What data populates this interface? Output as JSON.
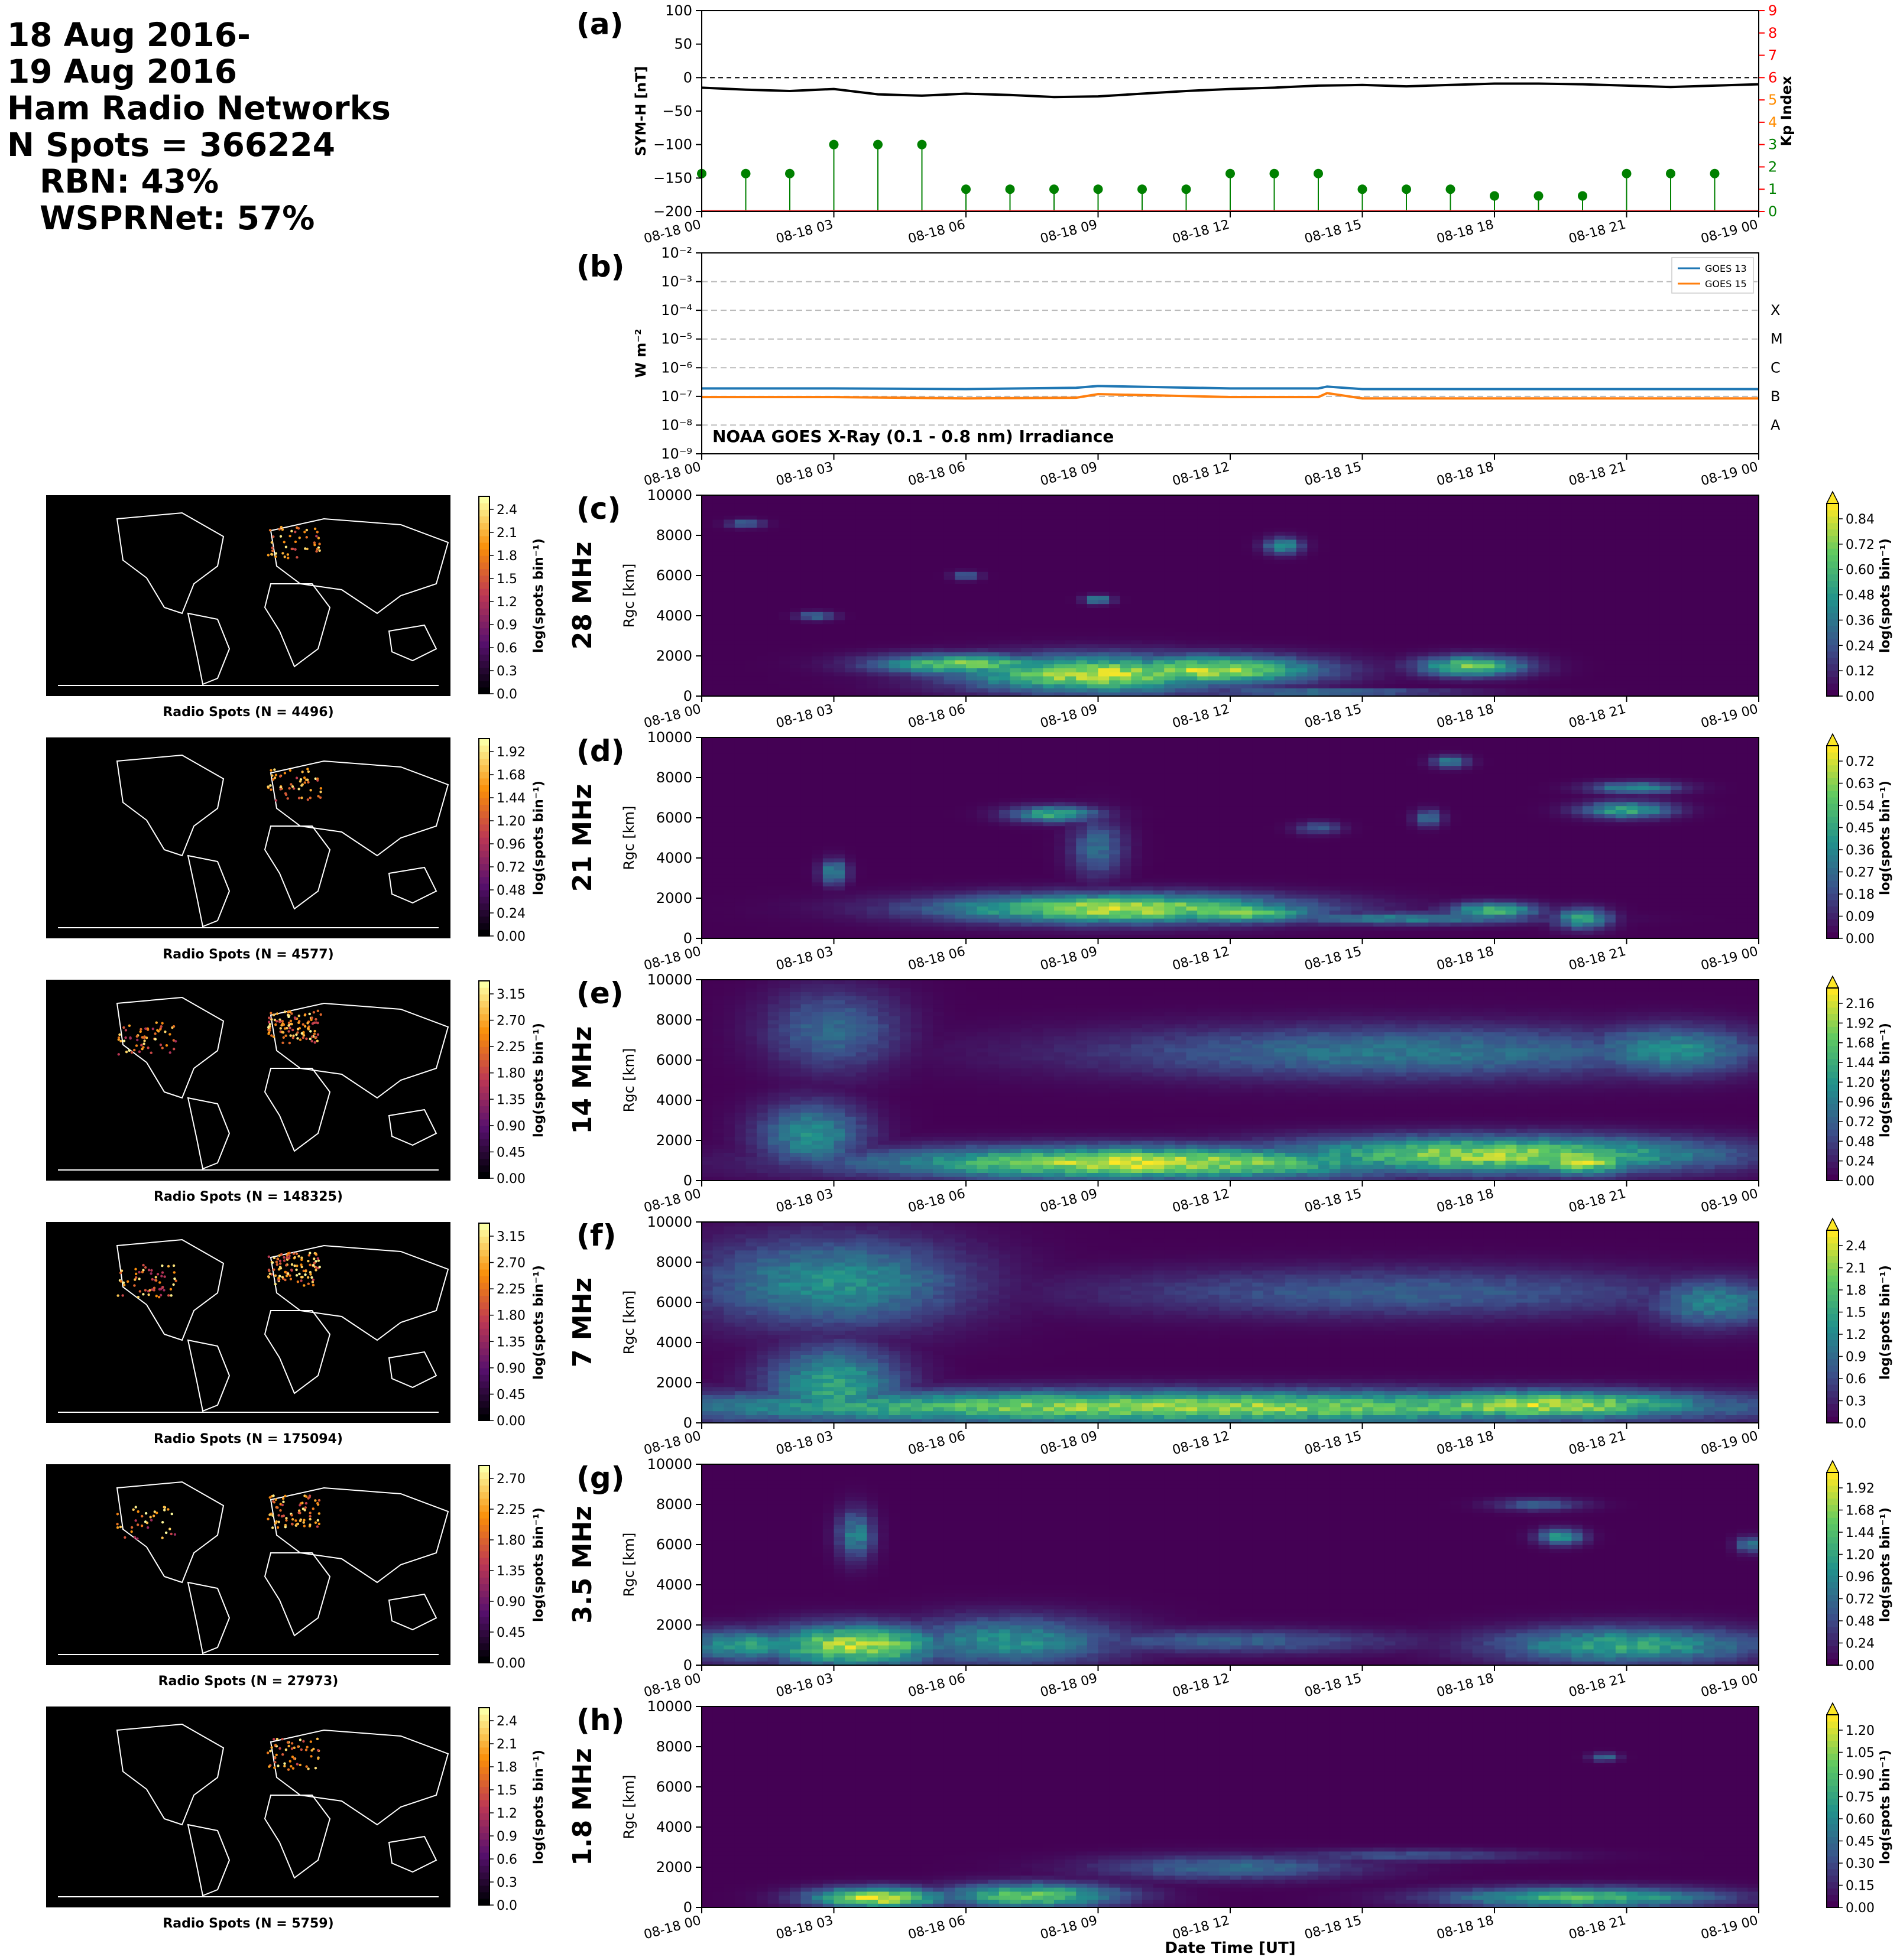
{
  "header": {
    "date_line1": "18 Aug 2016-",
    "date_line2": "19 Aug 2016",
    "network": "Ham Radio Networks",
    "n_spots": "N Spots = 366224",
    "rbn": "RBN: 43%",
    "wspr": "WSPRNet: 57%"
  },
  "time_ticks": [
    "08-18 00",
    "08-18 03",
    "08-18 06",
    "08-18 09",
    "08-18 12",
    "08-18 15",
    "08-18 18",
    "08-18 21",
    "08-19 00"
  ],
  "xlabel_bottom": "Date Time [UT]",
  "colors": {
    "symh_line": "#000000",
    "kp_stem": "#008000",
    "goes13": "#1f77b4",
    "goes15": "#ff7f0e",
    "kp_axis": "#ff0000",
    "map_bg": "#000000",
    "coast": "#ffffff"
  },
  "panel_a": {
    "label": "(a)",
    "ylabel_left": "SYM-H [nT]",
    "ylabel_right": "Kp Index",
    "yticks_left": [
      "100",
      "50",
      "0",
      "−50",
      "−100",
      "−150",
      "−200"
    ],
    "yticks_right": [
      "9",
      "8",
      "7",
      "6",
      "5",
      "4",
      "3",
      "2",
      "1",
      "0"
    ]
  },
  "panel_b": {
    "label": "(b)",
    "ylabel": "W m⁻²",
    "caption": "NOAA GOES X-Ray (0.1 - 0.8 nm) Irradiance",
    "classes": [
      "X",
      "M",
      "C",
      "B",
      "A"
    ],
    "yticks": [
      "10⁻²",
      "10⁻³",
      "10⁻⁴",
      "10⁻⁵",
      "10⁻⁶",
      "10⁻⁷",
      "10⁻⁸",
      "10⁻⁹"
    ],
    "legend": [
      "GOES 13",
      "GOES 15"
    ]
  },
  "band_ylabel": "Rgc [km]",
  "band_yticks": [
    "10000",
    "8000",
    "6000",
    "4000",
    "2000",
    "0"
  ],
  "cbar_label": "log(spots bin⁻¹)",
  "bands": [
    {
      "label": "(c)",
      "freq": "28 MHz",
      "map_caption": "Radio Spots (N = 4496)",
      "map_ticks": [
        "2.4",
        "2.1",
        "1.8",
        "1.5",
        "1.2",
        "0.9",
        "0.6",
        "0.3",
        "0.0"
      ],
      "ticks": [
        "0.84",
        "0.72",
        "0.60",
        "0.48",
        "0.36",
        "0.24",
        "0.12",
        "0.00"
      ]
    },
    {
      "label": "(d)",
      "freq": "21 MHz",
      "map_caption": "Radio Spots (N = 4577)",
      "map_ticks": [
        "1.92",
        "1.68",
        "1.44",
        "1.20",
        "0.96",
        "0.72",
        "0.48",
        "0.24",
        "0.00"
      ],
      "ticks": [
        "0.72",
        "0.63",
        "0.54",
        "0.45",
        "0.36",
        "0.27",
        "0.18",
        "0.09",
        "0.00"
      ]
    },
    {
      "label": "(e)",
      "freq": "14 MHz",
      "map_caption": "Radio Spots (N = 148325)",
      "map_ticks": [
        "3.15",
        "2.70",
        "2.25",
        "1.80",
        "1.35",
        "0.90",
        "0.45",
        "0.00"
      ],
      "ticks": [
        "2.16",
        "1.92",
        "1.68",
        "1.44",
        "1.20",
        "0.96",
        "0.72",
        "0.48",
        "0.24",
        "0.00"
      ]
    },
    {
      "label": "(f)",
      "freq": "7 MHz",
      "map_caption": "Radio Spots (N = 175094)",
      "map_ticks": [
        "3.15",
        "2.70",
        "2.25",
        "1.80",
        "1.35",
        "0.90",
        "0.45",
        "0.00"
      ],
      "ticks": [
        "2.4",
        "2.1",
        "1.8",
        "1.5",
        "1.2",
        "0.9",
        "0.6",
        "0.3",
        "0.0"
      ]
    },
    {
      "label": "(g)",
      "freq": "3.5 MHz",
      "map_caption": "Radio Spots (N = 27973)",
      "map_ticks": [
        "2.70",
        "2.25",
        "1.80",
        "1.35",
        "0.90",
        "0.45",
        "0.00"
      ],
      "ticks": [
        "1.92",
        "1.68",
        "1.44",
        "1.20",
        "0.96",
        "0.72",
        "0.48",
        "0.24",
        "0.00"
      ]
    },
    {
      "label": "(h)",
      "freq": "1.8 MHz",
      "map_caption": "Radio Spots (N = 5759)",
      "map_ticks": [
        "2.4",
        "2.1",
        "1.8",
        "1.5",
        "1.2",
        "0.9",
        "0.6",
        "0.3",
        "0.0"
      ],
      "ticks": [
        "1.20",
        "1.05",
        "0.90",
        "0.75",
        "0.60",
        "0.45",
        "0.30",
        "0.15",
        "0.00"
      ]
    }
  ],
  "chart_data": [
    {
      "type": "line",
      "panel": "(a)",
      "x_range": [
        "2016-08-18 00:00",
        "2016-08-19 00:00"
      ],
      "ylabel": "SYM-H [nT]",
      "ylim": [
        -200,
        100
      ],
      "reference_line": 0,
      "series": [
        {
          "x_hours": [
            0,
            1,
            2,
            3,
            4,
            5,
            6,
            7,
            8,
            9,
            10,
            11,
            12,
            13,
            14,
            15,
            16,
            17,
            18,
            19,
            20,
            21,
            22,
            23,
            24
          ],
          "values": [
            -15,
            -18,
            -20,
            -17,
            -25,
            -27,
            -24,
            -26,
            -29,
            -28,
            -24,
            -20,
            -17,
            -15,
            -12,
            -11,
            -13,
            -11,
            -9,
            -9,
            -10,
            -12,
            -14,
            -12,
            -10
          ]
        }
      ],
      "kp": {
        "ylabel": "Kp Index",
        "ylim": [
          0,
          9
        ],
        "times_hours": [
          0,
          1,
          2,
          3,
          4,
          5,
          6,
          7,
          8,
          9,
          10,
          11,
          12,
          13,
          14,
          15,
          16,
          17,
          18,
          19,
          20,
          21,
          22,
          23
        ],
        "values": [
          1.7,
          1.7,
          1.7,
          3,
          3,
          3,
          1,
          1,
          1,
          1,
          1,
          1,
          1.7,
          1.7,
          1.7,
          1,
          1,
          1,
          0.7,
          0.7,
          0.7,
          1.7,
          1.7,
          1.7
        ]
      }
    },
    {
      "type": "line",
      "panel": "(b)",
      "ylabel": "W m⁻²",
      "yscale": "log",
      "ylim": [
        1e-09,
        0.01
      ],
      "series": [
        {
          "name": "GOES 13",
          "x_hours": [
            0,
            3,
            6,
            8.5,
            9,
            12,
            14,
            14.2,
            15,
            18,
            21,
            24
          ],
          "values": [
            1.9e-07,
            1.9e-07,
            1.8e-07,
            2e-07,
            2.3e-07,
            1.9e-07,
            1.9e-07,
            2.2e-07,
            1.8e-07,
            1.8e-07,
            1.8e-07,
            1.8e-07
          ]
        },
        {
          "name": "GOES 15",
          "x_hours": [
            0,
            3,
            6,
            8.5,
            9,
            12,
            14,
            14.2,
            15,
            18,
            21,
            24
          ],
          "values": [
            9.5e-08,
            9.5e-08,
            8.5e-08,
            9e-08,
            1.2e-07,
            9.5e-08,
            9.5e-08,
            1.3e-07,
            8.5e-08,
            8.5e-08,
            8.5e-08,
            8.5e-08
          ]
        }
      ]
    },
    {
      "type": "heatmap",
      "panel": "(c) 28 MHz",
      "ylim": [
        0,
        10000
      ],
      "blobs": [
        [
          6,
          1.6,
          2,
          0.5,
          0.78
        ],
        [
          9,
          1.1,
          3,
          0.9,
          0.9
        ],
        [
          11.5,
          1.3,
          2.5,
          0.7,
          0.88
        ],
        [
          17.5,
          1.5,
          1.2,
          0.5,
          0.75
        ],
        [
          13.2,
          7.5,
          0.4,
          0.4,
          0.55
        ],
        [
          9,
          4.8,
          0.3,
          0.2,
          0.5
        ],
        [
          2.6,
          4,
          0.4,
          0.2,
          0.4
        ],
        [
          6,
          6,
          0.3,
          0.2,
          0.35
        ],
        [
          1,
          8.6,
          0.4,
          0.2,
          0.35
        ],
        [
          14,
          0.2,
          3,
          0.15,
          0.5
        ]
      ]
    },
    {
      "type": "heatmap",
      "panel": "(d) 21 MHz",
      "ylim": [
        0,
        10000
      ],
      "blobs": [
        [
          9.5,
          1.5,
          4,
          0.7,
          0.9
        ],
        [
          12,
          1.3,
          2,
          0.5,
          0.8
        ],
        [
          16,
          1,
          3,
          0.3,
          0.45
        ],
        [
          18,
          1.4,
          1,
          0.4,
          0.65
        ],
        [
          20,
          1,
          0.6,
          0.5,
          0.6
        ],
        [
          8,
          6.2,
          1,
          0.4,
          0.6
        ],
        [
          21,
          6.4,
          1,
          0.4,
          0.62
        ],
        [
          21.2,
          7.5,
          1,
          0.3,
          0.5
        ],
        [
          3,
          3.3,
          0.3,
          0.6,
          0.5
        ],
        [
          17,
          8.8,
          0.4,
          0.3,
          0.45
        ],
        [
          9,
          4.5,
          0.6,
          1.4,
          0.35
        ],
        [
          14,
          5.5,
          0.5,
          0.3,
          0.3
        ],
        [
          16.5,
          6,
          0.3,
          0.4,
          0.4
        ]
      ]
    },
    {
      "type": "heatmap",
      "panel": "(e) 14 MHz",
      "ylim": [
        0,
        10000
      ],
      "blobs": [
        [
          10,
          0.9,
          6,
          0.8,
          0.92
        ],
        [
          18,
          1.3,
          5,
          0.9,
          0.85
        ],
        [
          2.5,
          2.3,
          1.2,
          1.6,
          0.5
        ],
        [
          20,
          1.0,
          1.3,
          0.7,
          0.9
        ],
        [
          16,
          6.4,
          7,
          1.3,
          0.4
        ],
        [
          22,
          6.5,
          2,
          1.2,
          0.5
        ],
        [
          3,
          7.5,
          1.5,
          2,
          0.35
        ]
      ]
    },
    {
      "type": "heatmap",
      "panel": "(f) 7 MHz",
      "ylim": [
        0,
        10000
      ],
      "blobs": [
        [
          11,
          0.8,
          12,
          0.8,
          0.85
        ],
        [
          19,
          0.9,
          4,
          0.7,
          0.9
        ],
        [
          3,
          1.8,
          1.5,
          2,
          0.6
        ],
        [
          3,
          7,
          3,
          2.2,
          0.5
        ],
        [
          16,
          6.5,
          7,
          1.2,
          0.3
        ],
        [
          23,
          6,
          1.5,
          1.2,
          0.45
        ]
      ]
    },
    {
      "type": "heatmap",
      "panel": "(g) 3.5 MHz",
      "ylim": [
        0,
        10000
      ],
      "blobs": [
        [
          3.5,
          1,
          2,
          1,
          0.9
        ],
        [
          1,
          1,
          1.5,
          0.8,
          0.55
        ],
        [
          7,
          1.2,
          2.5,
          1.2,
          0.5
        ],
        [
          21,
          1,
          3,
          0.9,
          0.6
        ],
        [
          19.5,
          6.4,
          0.5,
          0.4,
          0.55
        ],
        [
          3.5,
          6.5,
          0.4,
          1.2,
          0.45
        ],
        [
          12,
          1.2,
          4,
          0.6,
          0.3
        ],
        [
          19,
          8,
          1,
          0.3,
          0.3
        ],
        [
          23.8,
          6,
          0.3,
          0.4,
          0.4
        ]
      ]
    },
    {
      "type": "heatmap",
      "panel": "(h) 1.8 MHz",
      "ylim": [
        0,
        10000
      ],
      "blobs": [
        [
          4,
          0.5,
          1.5,
          0.5,
          0.95
        ],
        [
          7.5,
          0.6,
          2,
          0.6,
          0.75
        ],
        [
          20,
          0.5,
          3,
          0.5,
          0.7
        ],
        [
          12,
          2,
          3,
          0.6,
          0.35
        ],
        [
          16,
          2.6,
          3,
          0.3,
          0.25
        ],
        [
          20.5,
          7.5,
          0.3,
          0.2,
          0.4
        ]
      ]
    }
  ]
}
